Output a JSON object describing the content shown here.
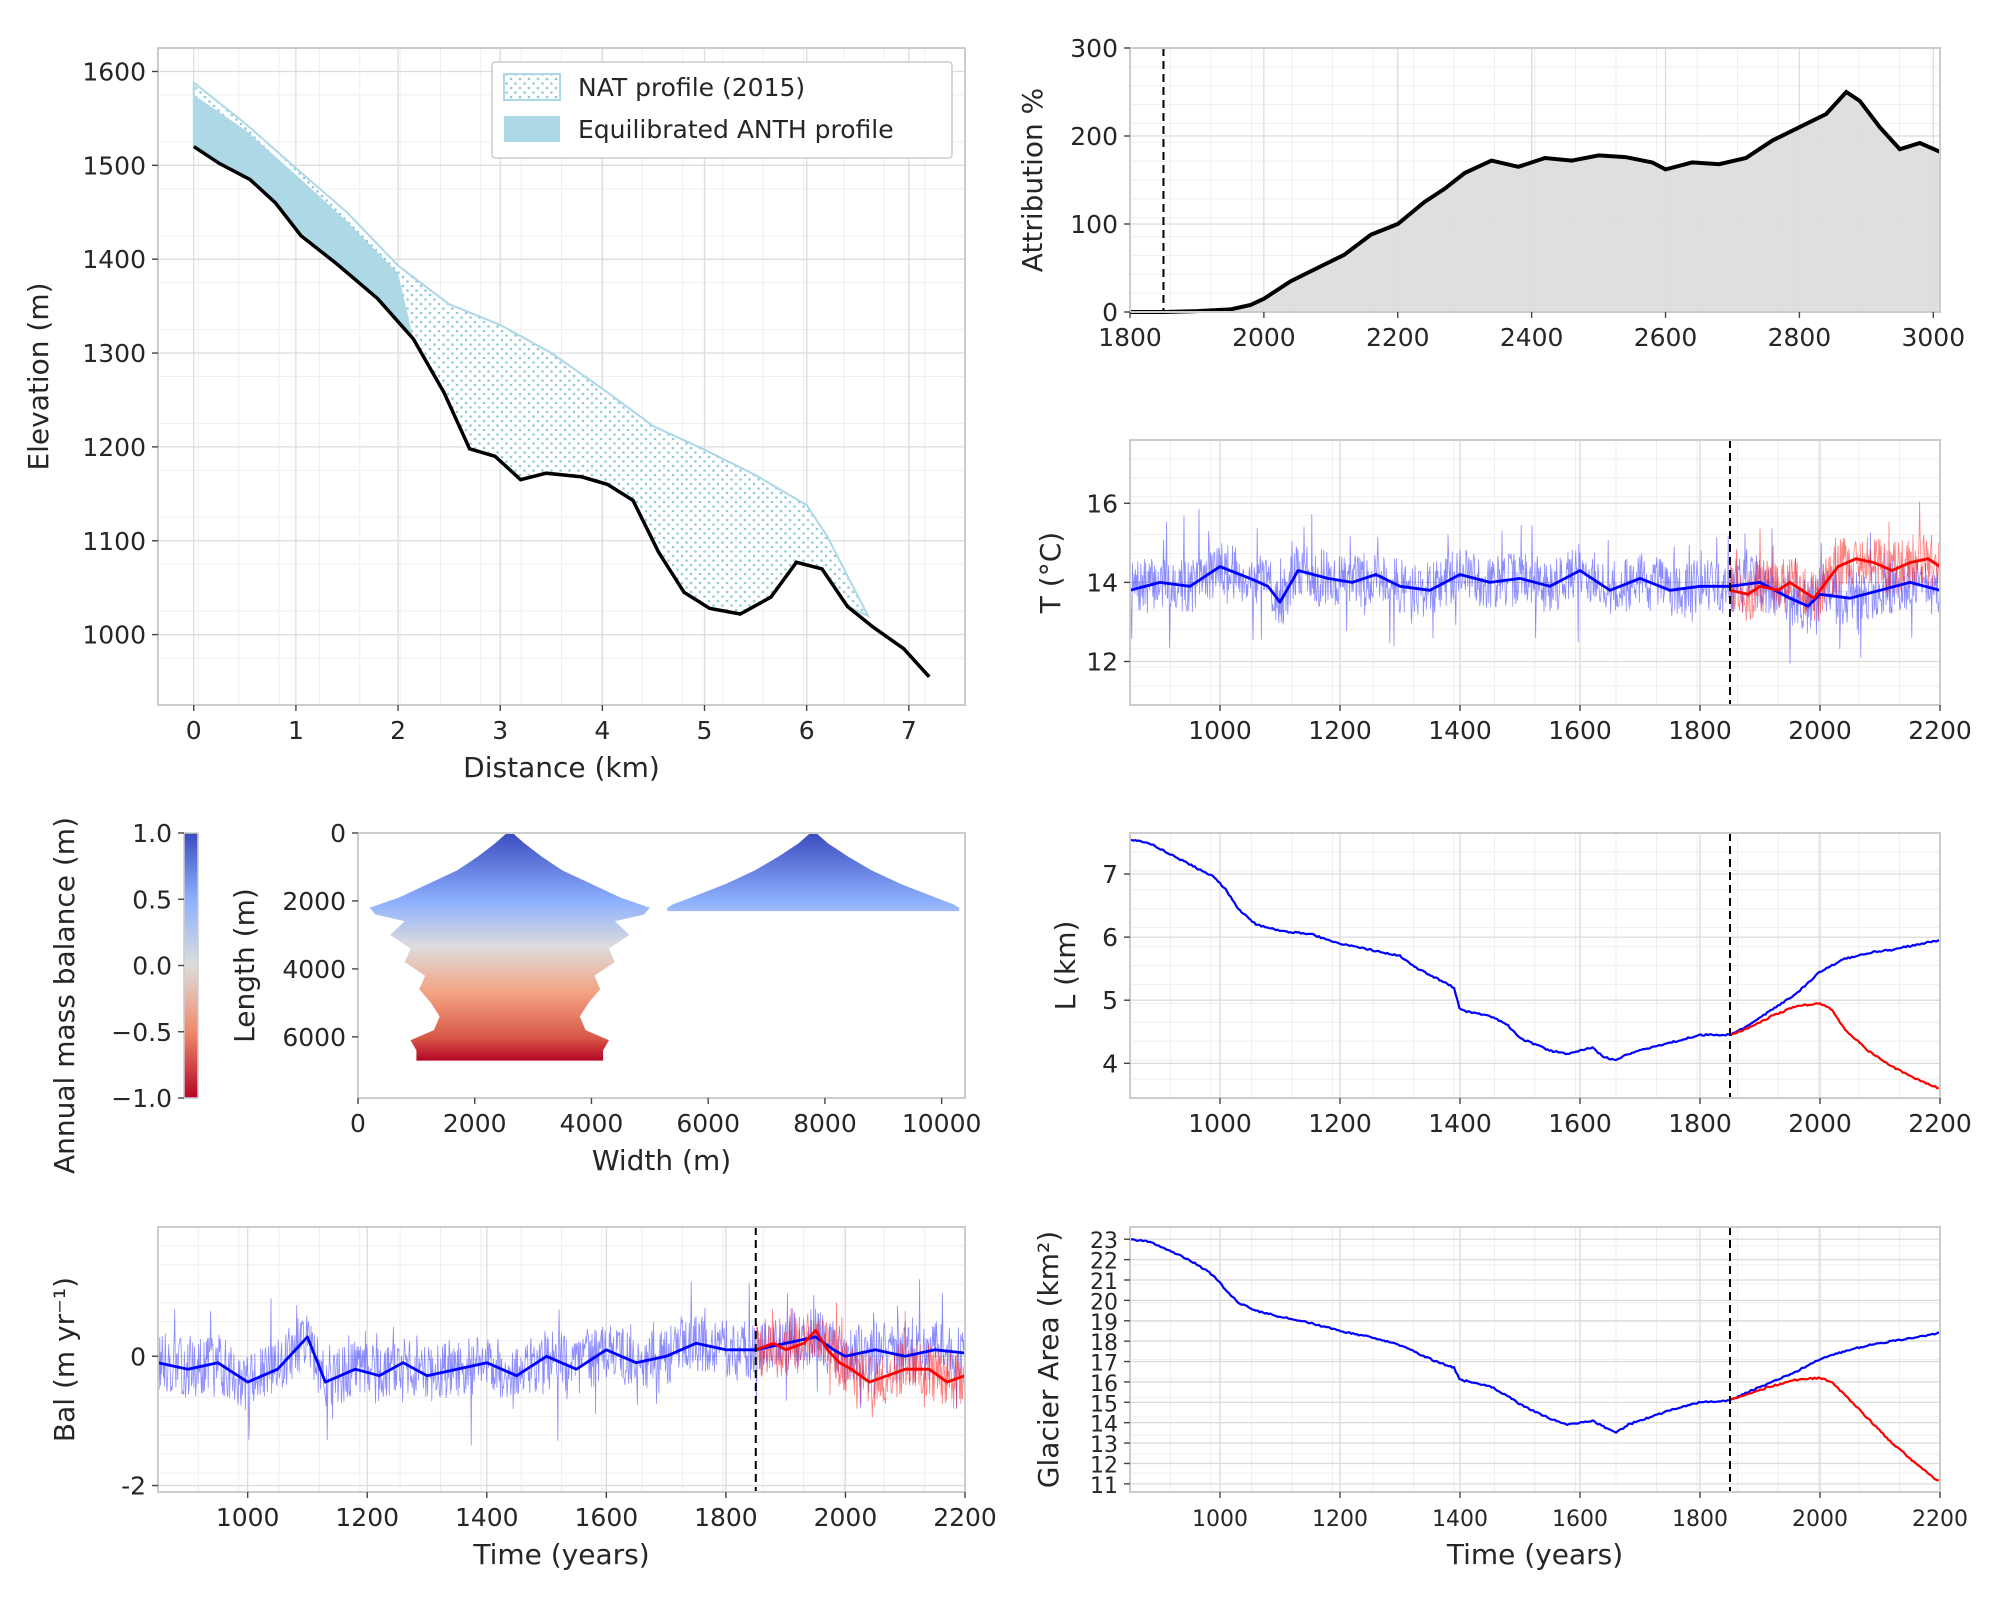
{
  "chart_data": [
    {
      "id": "profile",
      "type": "area",
      "xlabel": "Distance (km)",
      "ylabel": "Elevation (m)",
      "xlim": [
        -0.35,
        7.55
      ],
      "ylim": [
        925,
        1625
      ],
      "xticks": [
        0,
        1,
        2,
        3,
        4,
        5,
        6,
        7
      ],
      "yticks": [
        1000,
        1100,
        1200,
        1300,
        1400,
        1500,
        1600
      ],
      "grid": true,
      "legend_position": "top-right",
      "legend": [
        "NAT profile (2015)",
        "Equilibrated ANTH profile"
      ],
      "series": [
        {
          "name": "NAT profile (2015)",
          "style": "dotted-fill",
          "color": "#add8e6",
          "x": [
            0,
            0.5,
            1,
            1.5,
            2,
            2.5,
            3,
            3.5,
            4,
            4.5,
            5,
            5.5,
            6,
            6.2,
            6.6
          ],
          "y": [
            1588,
            1545,
            1497,
            1450,
            1393,
            1352,
            1330,
            1300,
            1262,
            1222,
            1197,
            1170,
            1138,
            1105,
            1020
          ]
        },
        {
          "name": "Equilibrated ANTH profile",
          "style": "solid-fill",
          "color": "#add8e6",
          "x": [
            0,
            0.5,
            1,
            1.5,
            2
          ],
          "y": [
            1575,
            1538,
            1490,
            1440,
            1385
          ]
        },
        {
          "name": "",
          "style": "line",
          "color": "#000000",
          "x": [
            0,
            0.25,
            0.55,
            0.8,
            1.05,
            1.4,
            1.8,
            2.15,
            2.45,
            2.7,
            2.95,
            3.2,
            3.45,
            3.8,
            4.05,
            4.3,
            4.55,
            4.8,
            5.05,
            5.35,
            5.65,
            5.9,
            6.15,
            6.4,
            6.65,
            6.95,
            7.2
          ],
          "y": [
            1520,
            1502,
            1485,
            1460,
            1425,
            1395,
            1358,
            1315,
            1258,
            1198,
            1190,
            1165,
            1172,
            1168,
            1160,
            1143,
            1088,
            1045,
            1028,
            1022,
            1040,
            1077,
            1070,
            1030,
            1008,
            985,
            955
          ]
        }
      ]
    },
    {
      "id": "attribution",
      "type": "area",
      "xlabel": "",
      "ylabel": "Attribution %",
      "xlim": [
        1800,
        3010
      ],
      "ylim": [
        0,
        300
      ],
      "xticks": [
        1800,
        2000,
        2200,
        2400,
        2600,
        2800,
        3000
      ],
      "yticks": [
        0,
        100,
        200,
        300
      ],
      "grid": true,
      "vline": 1850,
      "series": [
        {
          "name": "",
          "color": "#000000",
          "fill": "#dcdcdc",
          "x": [
            1800,
            1850,
            1900,
            1950,
            1980,
            2000,
            2040,
            2080,
            2120,
            2160,
            2200,
            2240,
            2270,
            2300,
            2340,
            2380,
            2420,
            2460,
            2500,
            2540,
            2580,
            2600,
            2640,
            2680,
            2720,
            2760,
            2800,
            2840,
            2870,
            2890,
            2920,
            2950,
            2980,
            3010
          ],
          "y": [
            0,
            0,
            1,
            3,
            8,
            15,
            35,
            50,
            65,
            88,
            100,
            125,
            140,
            158,
            172,
            165,
            175,
            172,
            178,
            176,
            170,
            162,
            170,
            168,
            175,
            195,
            210,
            225,
            250,
            240,
            210,
            185,
            192,
            182
          ]
        }
      ]
    },
    {
      "id": "temperature",
      "type": "line",
      "xlabel": "",
      "ylabel": "T (°C)",
      "xlim": [
        850,
        2200
      ],
      "ylim": [
        10.9,
        17.6
      ],
      "xticks": [
        1000,
        1200,
        1400,
        1600,
        1800,
        2000,
        2200
      ],
      "yticks": [
        12,
        14,
        16
      ],
      "grid": true,
      "vline": 1850,
      "series": [
        {
          "name": "",
          "color": "#0000ff",
          "smooth": true,
          "x": [
            850,
            900,
            950,
            1000,
            1050,
            1080,
            1100,
            1130,
            1180,
            1220,
            1260,
            1300,
            1350,
            1400,
            1450,
            1500,
            1550,
            1600,
            1650,
            1700,
            1750,
            1800,
            1850,
            1900,
            1950,
            1980,
            2000,
            2050,
            2100,
            2150,
            2200
          ],
          "y": [
            13.8,
            14.0,
            13.9,
            14.4,
            14.1,
            13.9,
            13.5,
            14.3,
            14.1,
            14.0,
            14.2,
            13.9,
            13.8,
            14.2,
            14.0,
            14.1,
            13.9,
            14.3,
            13.8,
            14.1,
            13.8,
            13.9,
            13.9,
            14.0,
            13.6,
            13.4,
            13.7,
            13.6,
            13.8,
            14.0,
            13.8
          ]
        },
        {
          "name": "",
          "color": "#ff0000",
          "smooth": true,
          "x": [
            1850,
            1880,
            1900,
            1930,
            1950,
            1970,
            1990,
            2010,
            2030,
            2060,
            2090,
            2120,
            2150,
            2180,
            2200
          ],
          "y": [
            13.8,
            13.7,
            13.9,
            13.8,
            14.0,
            13.8,
            13.6,
            14.0,
            14.4,
            14.6,
            14.5,
            14.3,
            14.5,
            14.6,
            14.4
          ]
        }
      ]
    },
    {
      "id": "mass_balance_map",
      "type": "heatmap",
      "xlabel": "Width (m)",
      "ylabel": "Length (m)",
      "xlim": [
        0,
        10400
      ],
      "ylim": [
        7800,
        0
      ],
      "xticks": [
        0,
        2000,
        4000,
        6000,
        8000,
        10000
      ],
      "yticks": [
        0,
        2000,
        4000,
        6000
      ],
      "colorbar": {
        "label": "Annual mass balance (m)",
        "range": [
          -1.0,
          1.0
        ],
        "ticks": [
          -1.0,
          -0.5,
          0.0,
          0.5,
          1.0
        ],
        "colormap": "coolwarm_r"
      },
      "shapes": [
        {
          "center": 2600,
          "length": [
            0,
            300,
            700,
            1100,
            1500,
            1900,
            2200,
            2400,
            2600,
            3000,
            3400,
            3800,
            4200,
            4600,
            5000,
            5400,
            5800,
            6100,
            6400,
            6700
          ],
          "halfwidth": [
            50,
            250,
            550,
            900,
            1400,
            1900,
            2400,
            2300,
            1800,
            2050,
            1700,
            1800,
            1450,
            1550,
            1350,
            1200,
            1300,
            1700,
            1600,
            1600
          ]
        },
        {
          "center": 7800,
          "length": [
            0,
            300,
            700,
            1100,
            1500,
            1900,
            2100,
            2200,
            2300
          ],
          "halfwidth": [
            50,
            250,
            600,
            1000,
            1500,
            2100,
            2400,
            2500,
            2500
          ]
        }
      ]
    },
    {
      "id": "length",
      "type": "line",
      "xlabel": "",
      "ylabel": "L (km)",
      "xlim": [
        850,
        2200
      ],
      "ylim": [
        3.45,
        7.65
      ],
      "xticks": [
        1000,
        1200,
        1400,
        1600,
        1800,
        2000,
        2200
      ],
      "yticks": [
        4,
        5,
        6,
        7
      ],
      "grid": true,
      "vline": 1850,
      "series": [
        {
          "name": "",
          "color": "#0000ff",
          "x": [
            850,
            880,
            920,
            960,
            990,
            1010,
            1030,
            1060,
            1100,
            1150,
            1200,
            1250,
            1300,
            1330,
            1360,
            1390,
            1400,
            1420,
            1450,
            1480,
            1500,
            1550,
            1580,
            1600,
            1620,
            1640,
            1660,
            1680,
            1700,
            1720,
            1760,
            1800,
            1850,
            1880,
            1920,
            1960,
            2000,
            2040,
            2080,
            2120,
            2160,
            2200
          ],
          "y": [
            7.55,
            7.5,
            7.3,
            7.1,
            6.95,
            6.75,
            6.45,
            6.2,
            6.1,
            6.05,
            5.9,
            5.8,
            5.7,
            5.5,
            5.35,
            5.2,
            4.85,
            4.8,
            4.75,
            4.6,
            4.4,
            4.2,
            4.15,
            4.2,
            4.25,
            4.1,
            4.05,
            4.15,
            4.2,
            4.25,
            4.35,
            4.45,
            4.45,
            4.6,
            4.85,
            5.1,
            5.45,
            5.65,
            5.75,
            5.8,
            5.88,
            5.95
          ]
        },
        {
          "name": "",
          "color": "#ff0000",
          "x": [
            1850,
            1880,
            1920,
            1960,
            2000,
            2020,
            2040,
            2080,
            2120,
            2160,
            2200
          ],
          "y": [
            4.45,
            4.55,
            4.75,
            4.9,
            4.95,
            4.85,
            4.55,
            4.2,
            3.95,
            3.75,
            3.6
          ]
        }
      ]
    },
    {
      "id": "balance",
      "type": "line",
      "xlabel": "Time (years)",
      "ylabel": "Bal (m yr⁻¹)",
      "xlim": [
        850,
        2200
      ],
      "ylim": [
        -2.1,
        2.0
      ],
      "xticks": [
        1000,
        1200,
        1400,
        1600,
        1800,
        2000,
        2200
      ],
      "yticks": [
        -2,
        0
      ],
      "grid": true,
      "vline": 1850,
      "series": [
        {
          "name": "",
          "color": "#0000ff",
          "smooth": true,
          "x": [
            850,
            900,
            950,
            1000,
            1050,
            1080,
            1100,
            1130,
            1180,
            1220,
            1260,
            1300,
            1350,
            1400,
            1450,
            1500,
            1550,
            1600,
            1650,
            1700,
            1750,
            1800,
            1850,
            1900,
            1950,
            1980,
            2000,
            2050,
            2100,
            2150,
            2200
          ],
          "y": [
            -0.1,
            -0.2,
            -0.1,
            -0.4,
            -0.2,
            0.1,
            0.3,
            -0.4,
            -0.2,
            -0.3,
            -0.1,
            -0.3,
            -0.2,
            -0.1,
            -0.3,
            0.0,
            -0.2,
            0.1,
            -0.1,
            0.0,
            0.2,
            0.1,
            0.1,
            0.2,
            0.3,
            0.1,
            0.0,
            0.1,
            0.0,
            0.1,
            0.05
          ]
        },
        {
          "name": "",
          "color": "#ff0000",
          "smooth": true,
          "x": [
            1850,
            1880,
            1900,
            1930,
            1950,
            1970,
            1990,
            2010,
            2040,
            2070,
            2100,
            2140,
            2170,
            2200
          ],
          "y": [
            0.1,
            0.2,
            0.1,
            0.2,
            0.4,
            0.1,
            -0.1,
            -0.2,
            -0.4,
            -0.3,
            -0.2,
            -0.2,
            -0.4,
            -0.3
          ]
        }
      ]
    },
    {
      "id": "area",
      "type": "line",
      "xlabel": "Time (years)",
      "ylabel": "Glacier Area (km²)",
      "xlim": [
        850,
        2200
      ],
      "ylim": [
        10.6,
        23.6
      ],
      "xticks": [
        1000,
        1200,
        1400,
        1600,
        1800,
        2000,
        2200
      ],
      "yticks": [
        11,
        12,
        13,
        14,
        15,
        16,
        17,
        18,
        19,
        20,
        21,
        22,
        23
      ],
      "grid": true,
      "vline": 1850,
      "series": [
        {
          "name": "",
          "color": "#0000ff",
          "x": [
            850,
            880,
            920,
            960,
            990,
            1010,
            1030,
            1060,
            1100,
            1150,
            1200,
            1250,
            1300,
            1330,
            1360,
            1390,
            1400,
            1420,
            1450,
            1480,
            1500,
            1550,
            1580,
            1600,
            1620,
            1640,
            1660,
            1680,
            1700,
            1720,
            1760,
            1800,
            1850,
            1880,
            1920,
            1960,
            2000,
            2040,
            2080,
            2120,
            2160,
            2200
          ],
          "y": [
            23.0,
            22.9,
            22.4,
            21.8,
            21.2,
            20.5,
            19.9,
            19.5,
            19.2,
            18.9,
            18.5,
            18.2,
            17.8,
            17.4,
            17.0,
            16.7,
            16.1,
            16.0,
            15.8,
            15.3,
            14.9,
            14.2,
            13.9,
            14.0,
            14.1,
            13.8,
            13.5,
            13.9,
            14.1,
            14.3,
            14.7,
            15.0,
            15.1,
            15.5,
            16.0,
            16.5,
            17.1,
            17.5,
            17.8,
            18.0,
            18.2,
            18.4
          ]
        },
        {
          "name": "",
          "color": "#ff0000",
          "x": [
            1850,
            1880,
            1920,
            1960,
            2000,
            2020,
            2040,
            2080,
            2120,
            2160,
            2190,
            2200
          ],
          "y": [
            15.1,
            15.4,
            15.8,
            16.1,
            16.2,
            16.0,
            15.4,
            14.2,
            13.0,
            12.0,
            11.3,
            11.1
          ]
        }
      ]
    }
  ]
}
